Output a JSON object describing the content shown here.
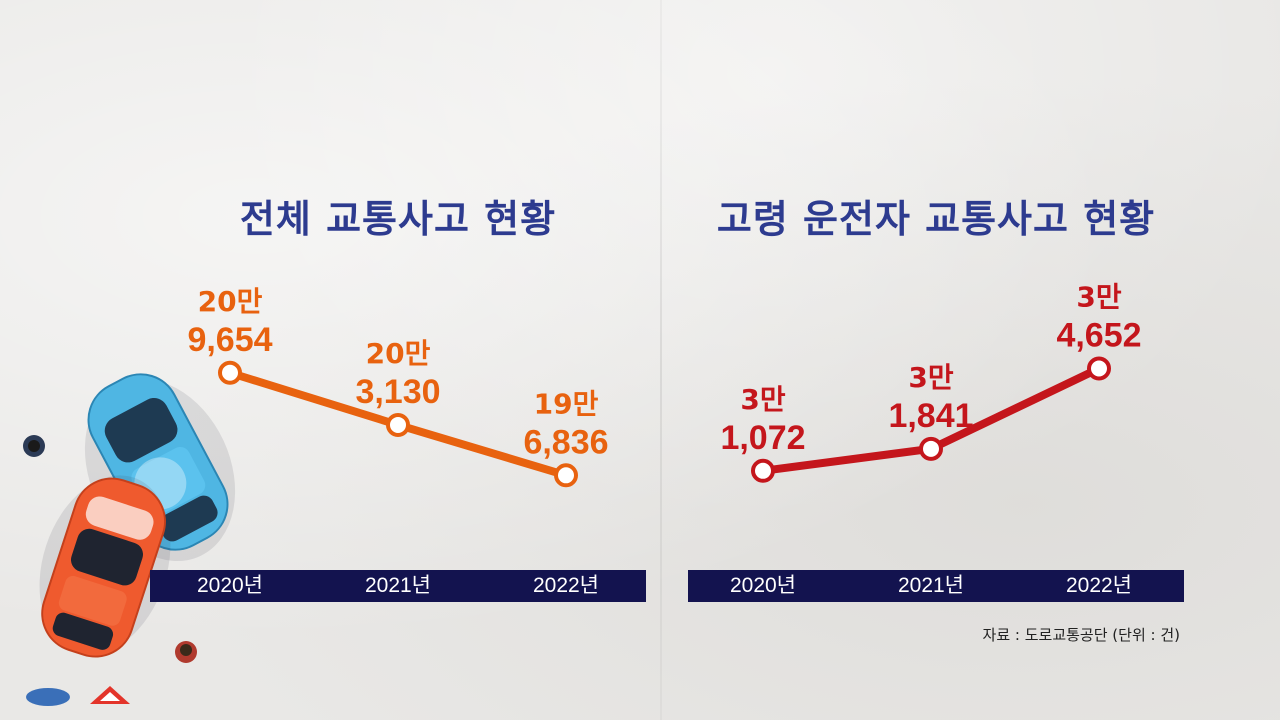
{
  "charts": {
    "left": {
      "title": "전체 교통사고 현황",
      "color": "#e8620f",
      "labels": [
        {
          "line1": "20만",
          "line2": "9,654"
        },
        {
          "line1": "20만",
          "line2": "3,130"
        },
        {
          "line1": "19만",
          "line2": "6,836"
        }
      ]
    },
    "right": {
      "title": "고령 운전자 교통사고 현황",
      "color": "#c4161c",
      "labels": [
        {
          "line1": "3만",
          "line2": "1,072"
        },
        {
          "line1": "3만",
          "line2": "1,841"
        },
        {
          "line1": "3만",
          "line2": "4,652"
        }
      ]
    }
  },
  "years": [
    "2020년",
    "2021년",
    "2022년"
  ],
  "source": "자료 : 도로교통공단 (단위 : 건)",
  "chart_data": [
    {
      "type": "line",
      "title": "전체 교통사고 현황",
      "categories": [
        "2020년",
        "2021년",
        "2022년"
      ],
      "values": [
        209654,
        203130,
        196836
      ],
      "ylim": [
        190000,
        215000
      ],
      "unit": "건",
      "xlabel": "",
      "ylabel": "",
      "grid": false
    },
    {
      "type": "line",
      "title": "고령 운전자 교통사고 현황",
      "categories": [
        "2020년",
        "2021년",
        "2022년"
      ],
      "values": [
        31072,
        31841,
        34652
      ],
      "ylim": [
        29000,
        36000
      ],
      "unit": "건",
      "xlabel": "",
      "ylabel": "",
      "grid": false
    }
  ]
}
